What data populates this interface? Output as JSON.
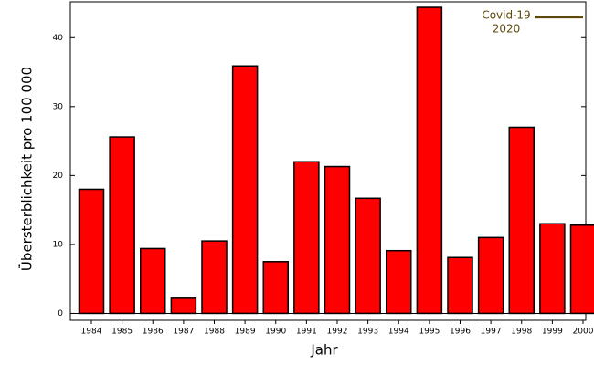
{
  "chart_data": {
    "type": "bar",
    "categories": [
      "1984",
      "1985",
      "1986",
      "1987",
      "1988",
      "1989",
      "1990",
      "1991",
      "1992",
      "1993",
      "1994",
      "1995",
      "1996",
      "1997",
      "1998",
      "1999",
      "2000"
    ],
    "values": [
      18.0,
      25.6,
      9.4,
      2.2,
      10.5,
      35.9,
      7.5,
      22.0,
      21.3,
      16.7,
      9.1,
      44.4,
      8.1,
      11.0,
      27.0,
      13.0,
      12.8
    ],
    "color": "#ff0000",
    "xlabel": "Jahr",
    "ylabel": "Übersterblichkeit pro 100 000",
    "ylim": [
      -1,
      45.2
    ],
    "yticks": [
      0,
      10,
      20,
      30,
      40
    ],
    "reference_line": {
      "label": [
        "Covid-19",
        "2020"
      ],
      "value": 43,
      "color": "#5c4a0c"
    }
  }
}
